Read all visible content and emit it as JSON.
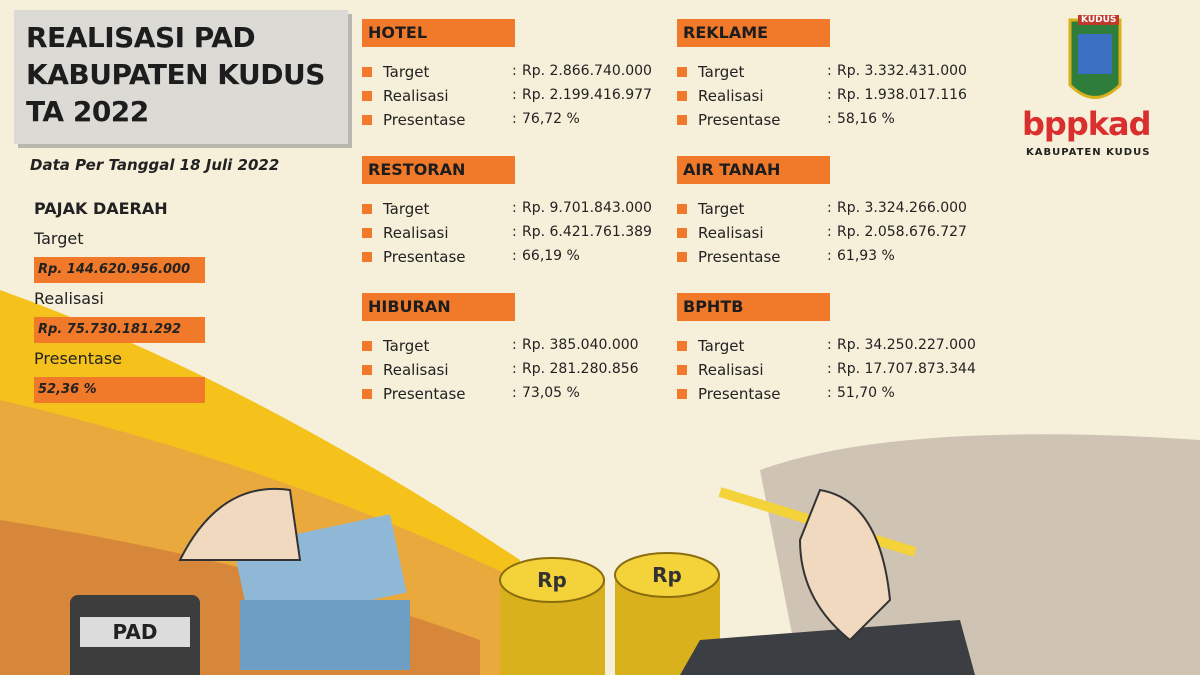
{
  "header": {
    "title_lines": [
      "REALISASI PAD",
      "KABUPATEN KUDUS",
      "TA 2022"
    ],
    "date": "Data Per Tanggal 18 Juli 2022"
  },
  "summary": {
    "heading": "PAJAK DAERAH",
    "items": [
      {
        "label": "Target",
        "value": "Rp. 144.620.956.000"
      },
      {
        "label": "Realisasi",
        "value": "Rp. 75.730.181.292"
      },
      {
        "label": "Presentase",
        "value": "52,36 %"
      }
    ]
  },
  "separator": ":",
  "sections": [
    {
      "heading": "HOTEL",
      "rows": [
        {
          "label": "Target",
          "value": "Rp. 2.866.740.000"
        },
        {
          "label": "Realisasi",
          "value": "Rp. 2.199.416.977"
        },
        {
          "label": "Presentase",
          "value": "76,72 %"
        }
      ]
    },
    {
      "heading": "RESTORAN",
      "rows": [
        {
          "label": "Target",
          "value": "Rp. 9.701.843.000"
        },
        {
          "label": "Realisasi",
          "value": "Rp. 6.421.761.389"
        },
        {
          "label": "Presentase",
          "value": "66,19 %"
        }
      ]
    },
    {
      "heading": "HIBURAN",
      "rows": [
        {
          "label": "Target",
          "value": "Rp. 385.040.000"
        },
        {
          "label": "Realisasi",
          "value": "Rp. 281.280.856"
        },
        {
          "label": "Presentase",
          "value": "73,05 %"
        }
      ]
    },
    {
      "heading": "REKLAME",
      "rows": [
        {
          "label": "Target",
          "value": "Rp. 3.332.431.000"
        },
        {
          "label": "Realisasi",
          "value": "Rp. 1.938.017.116"
        },
        {
          "label": "Presentase",
          "value": "58,16 %"
        }
      ]
    },
    {
      "heading": "AIR TANAH",
      "rows": [
        {
          "label": "Target",
          "value": "Rp. 3.324.266.000"
        },
        {
          "label": "Realisasi",
          "value": "Rp. 2.058.676.727"
        },
        {
          "label": "Presentase",
          "value": "61,93 %"
        }
      ]
    },
    {
      "heading": "BPHTB",
      "rows": [
        {
          "label": "Target",
          "value": "Rp. 34.250.227.000"
        },
        {
          "label": "Realisasi",
          "value": "Rp. 17.707.873.344"
        },
        {
          "label": "Presentase",
          "value": "51,70 %"
        }
      ]
    }
  ],
  "logo": {
    "shield_text": "KUDUS",
    "brand": "bppkad",
    "caption": "KABUPATEN KUDUS"
  },
  "illustration": {
    "calculator_text": "PAD",
    "coin_text": "Rp"
  }
}
